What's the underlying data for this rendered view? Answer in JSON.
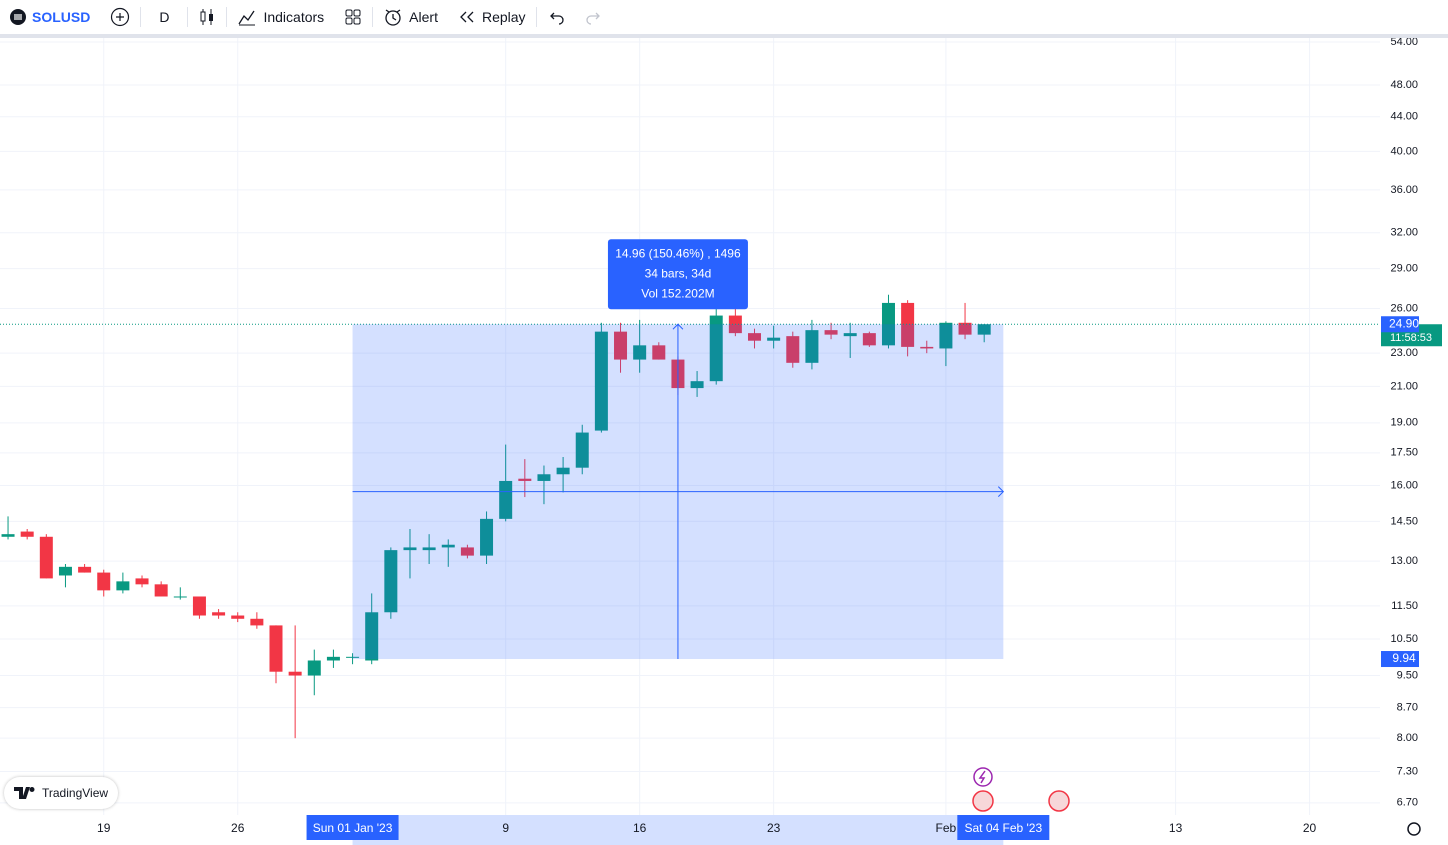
{
  "toolbar": {
    "symbol": "SOLUSD",
    "interval": "D",
    "indicators": "Indicators",
    "alert": "Alert",
    "replay": "Replay"
  },
  "watermark": "TradingView",
  "chart_data": {
    "type": "candlestick",
    "log_scale": true,
    "grid": true,
    "up_color": "#089981",
    "down_color": "#f23645",
    "x": [
      0,
      1,
      2,
      3,
      4,
      5,
      6,
      7,
      8,
      9,
      10,
      11,
      12,
      13,
      14,
      15,
      16,
      17,
      18,
      19,
      20,
      21,
      22,
      23,
      24,
      25,
      26,
      27,
      28,
      29,
      30,
      31,
      32,
      33,
      34,
      35,
      36,
      37,
      38,
      39,
      40,
      41,
      42,
      43,
      44,
      45,
      46,
      47,
      48,
      49,
      50,
      51
    ],
    "open": [
      13.9,
      14.1,
      13.9,
      12.5,
      12.8,
      12.6,
      12.0,
      12.4,
      12.2,
      11.8,
      11.8,
      11.3,
      11.2,
      11.1,
      10.9,
      9.6,
      9.5,
      9.9,
      10.0,
      9.9,
      11.3,
      13.4,
      13.4,
      13.5,
      13.5,
      13.2,
      14.6,
      16.3,
      16.2,
      16.5,
      16.8,
      18.6,
      24.4,
      22.6,
      23.5,
      22.6,
      20.9,
      21.3,
      25.5,
      24.3,
      23.8,
      24.1,
      22.4,
      24.5,
      24.1,
      24.3,
      23.5,
      26.4,
      23.4,
      23.3,
      25.0,
      24.2
    ],
    "high": [
      14.7,
      14.2,
      14.0,
      12.9,
      12.9,
      12.7,
      12.6,
      12.5,
      12.3,
      12.1,
      11.8,
      11.4,
      11.3,
      11.3,
      10.9,
      10.9,
      10.2,
      10.2,
      10.1,
      11.9,
      13.5,
      14.2,
      14.0,
      13.8,
      13.6,
      14.9,
      17.9,
      17.2,
      16.9,
      17.3,
      18.9,
      25.0,
      25.0,
      25.2,
      23.7,
      22.8,
      21.9,
      26.0,
      26.5,
      24.6,
      24.8,
      24.4,
      25.2,
      25.0,
      25.0,
      24.4,
      27.0,
      26.6,
      23.8,
      25.1,
      26.4,
      24.9
    ],
    "low": [
      13.8,
      13.8,
      12.4,
      12.1,
      12.6,
      11.8,
      11.9,
      12.1,
      11.8,
      11.7,
      11.1,
      11.1,
      11.0,
      10.8,
      9.3,
      8.0,
      9.0,
      9.7,
      9.8,
      9.8,
      11.1,
      12.4,
      12.9,
      12.8,
      13.1,
      12.9,
      14.5,
      15.5,
      15.2,
      15.7,
      16.5,
      18.5,
      21.8,
      21.8,
      22.6,
      20.5,
      20.4,
      21.1,
      24.1,
      23.3,
      23.3,
      22.1,
      22.0,
      23.9,
      22.7,
      23.4,
      23.3,
      22.8,
      23.0,
      22.2,
      23.9,
      23.7
    ],
    "close": [
      14.0,
      13.9,
      12.4,
      12.8,
      12.6,
      12.0,
      12.3,
      12.2,
      11.8,
      11.8,
      11.2,
      11.2,
      11.1,
      10.9,
      9.6,
      9.5,
      9.9,
      10.0,
      10.0,
      11.3,
      13.4,
      13.5,
      13.5,
      13.6,
      13.2,
      14.6,
      16.2,
      16.2,
      16.5,
      16.8,
      18.5,
      24.4,
      22.6,
      23.5,
      22.6,
      20.9,
      21.3,
      25.5,
      24.3,
      23.8,
      24.0,
      22.4,
      24.5,
      24.2,
      24.3,
      23.5,
      26.4,
      23.4,
      23.3,
      25.0,
      24.2,
      24.9
    ],
    "xlim": [
      -0.42,
      71.68
    ],
    "xticks": [
      {
        "value": 5,
        "label": "19"
      },
      {
        "value": 12,
        "label": "26"
      },
      {
        "value": 26,
        "label": "9"
      },
      {
        "value": 33,
        "label": "16"
      },
      {
        "value": 40,
        "label": "23"
      },
      {
        "value": 49,
        "label": "Feb"
      },
      {
        "value": 61,
        "label": "13"
      },
      {
        "value": 68,
        "label": "20"
      }
    ],
    "ylim": [
      6.48,
      54.6
    ],
    "yticks": [
      {
        "value": 6.7,
        "label": "6.70"
      },
      {
        "value": 7.3,
        "label": "7.30"
      },
      {
        "value": 8,
        "label": "8.00"
      },
      {
        "value": 8.7,
        "label": "8.70"
      },
      {
        "value": 9.5,
        "label": "9.50"
      },
      {
        "value": 10.5,
        "label": "10.50"
      },
      {
        "value": 11.5,
        "label": "11.50"
      },
      {
        "value": 13,
        "label": "13.00"
      },
      {
        "value": 14.5,
        "label": "14.50"
      },
      {
        "value": 16,
        "label": "16.00"
      },
      {
        "value": 17.5,
        "label": "17.50"
      },
      {
        "value": 19,
        "label": "19.00"
      },
      {
        "value": 21,
        "label": "21.00"
      },
      {
        "value": 23,
        "label": "23.00"
      },
      {
        "value": 26,
        "label": "26.00"
      },
      {
        "value": 29,
        "label": "29.00"
      },
      {
        "value": 32,
        "label": "32.00"
      },
      {
        "value": 36,
        "label": "36.00"
      },
      {
        "value": 40,
        "label": "40.00"
      },
      {
        "value": 44,
        "label": "44.00"
      },
      {
        "value": 48,
        "label": "48.00"
      },
      {
        "value": 54,
        "label": "54.00"
      }
    ],
    "last_price": {
      "value": 24.9,
      "countdown": "11:58:53",
      "color": "#089981"
    },
    "range": {
      "color": "#2962ff",
      "start": {
        "value": 18,
        "label": "Sun 01 Jan '23"
      },
      "end": {
        "value": 52,
        "label": "Sat 04 Feb '23"
      },
      "low": {
        "value": 9.94,
        "label": "9.94"
      },
      "high": {
        "value": 24.9,
        "label": "24.90"
      },
      "text": [
        "14.96 (150.46%) , 1496",
        "34 bars, 34d",
        "Vol 152.202M"
      ]
    }
  }
}
